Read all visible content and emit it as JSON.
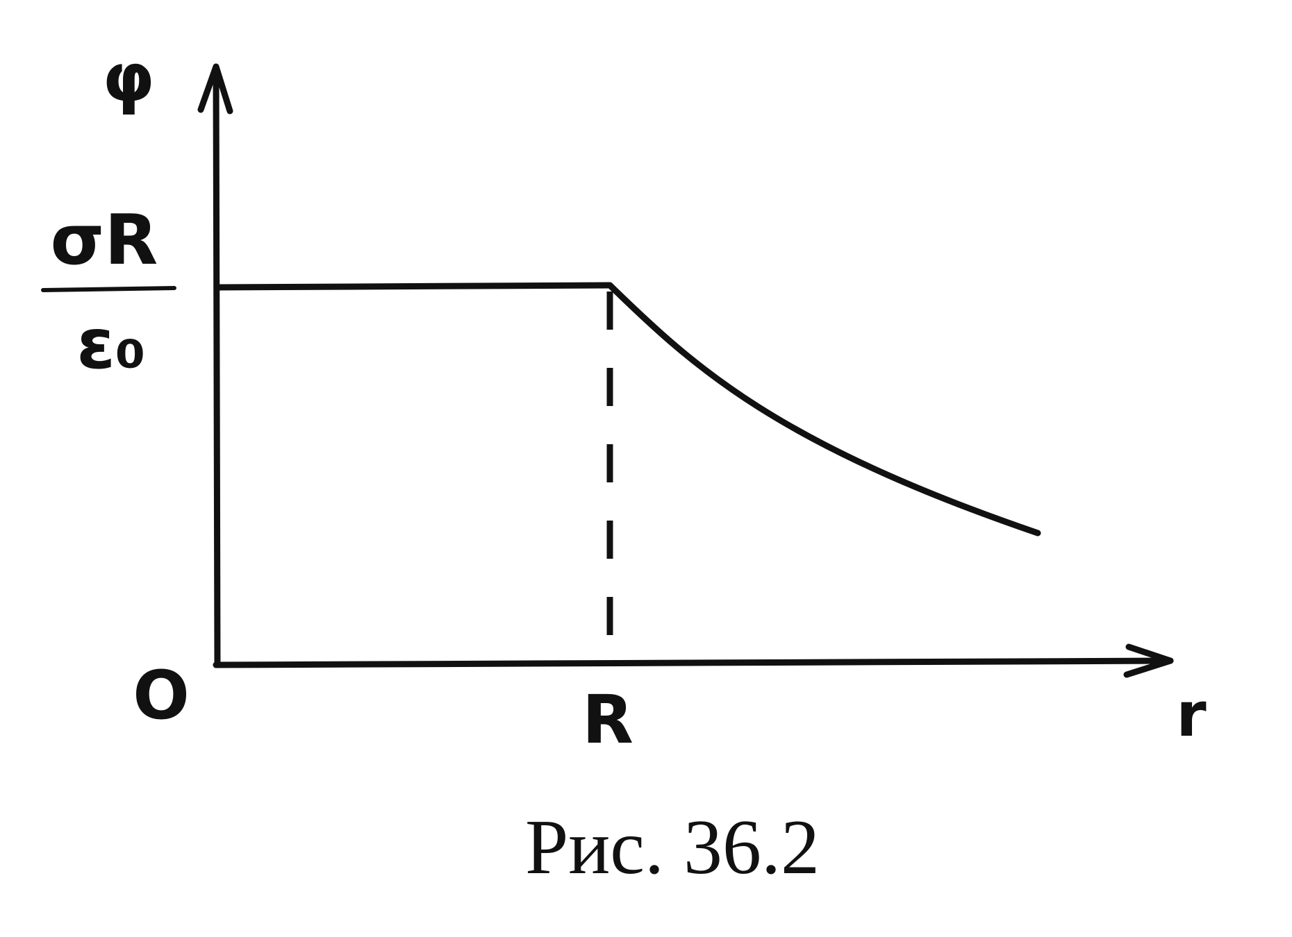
{
  "axes": {
    "y_label": "φ",
    "x_label": "r",
    "origin": "O",
    "x_mark": "R"
  },
  "level": {
    "numerator": "σR",
    "denominator": "ε₀"
  },
  "caption": "Рис. 36.2"
}
